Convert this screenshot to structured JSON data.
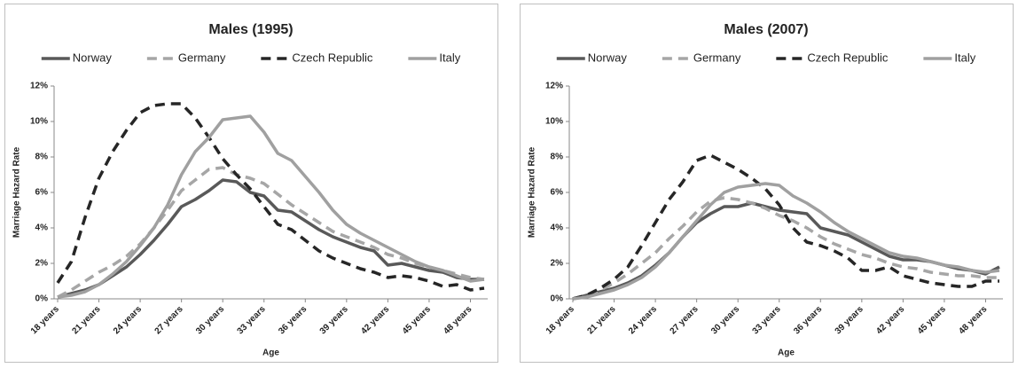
{
  "chart_data": [
    {
      "type": "line",
      "title": "Males (1995)",
      "x_label": "Age",
      "y_label": "Marriage Hazard Rate",
      "categories": [
        "18 years",
        null,
        null,
        "21 years",
        null,
        null,
        "24 years",
        null,
        null,
        "27 years",
        null,
        null,
        "30 years",
        null,
        null,
        "33 years",
        null,
        null,
        "36 years",
        null,
        null,
        "39 years",
        null,
        null,
        "42 years",
        null,
        null,
        "45 years",
        null,
        null,
        "48 years",
        null
      ],
      "ylim": [
        0,
        12
      ],
      "yticks": [
        {
          "value": 0,
          "label": "0%"
        },
        {
          "value": 2,
          "label": "2%"
        },
        {
          "value": 4,
          "label": "4%"
        },
        {
          "value": 6,
          "label": "6%"
        },
        {
          "value": 8,
          "label": "8%"
        },
        {
          "value": 10,
          "label": "10%"
        },
        {
          "value": 12,
          "label": "12%"
        }
      ],
      "grid": false,
      "legend": "top",
      "series": [
        {
          "name": "Norway",
          "color": "#595959",
          "dash": false,
          "values": [
            0.1,
            0.3,
            0.5,
            0.8,
            1.3,
            1.8,
            2.5,
            3.3,
            4.2,
            5.2,
            5.6,
            6.1,
            6.7,
            6.6,
            6.0,
            5.8,
            5.0,
            4.9,
            4.4,
            3.9,
            3.5,
            3.2,
            2.9,
            2.7,
            1.9,
            2.0,
            1.8,
            1.6,
            1.5,
            1.2,
            1.1,
            1.1
          ]
        },
        {
          "name": "Germany",
          "color": "#a6a6a6",
          "dash": true,
          "values": [
            0.1,
            0.5,
            1.0,
            1.5,
            1.9,
            2.4,
            3.1,
            4.0,
            5.0,
            6.1,
            6.7,
            7.3,
            7.4,
            7.0,
            6.8,
            6.5,
            5.9,
            5.3,
            4.8,
            4.3,
            3.8,
            3.5,
            3.2,
            2.9,
            2.5,
            2.3,
            2.0,
            1.8,
            1.6,
            1.4,
            1.2,
            1.1
          ]
        },
        {
          "name": "Czech Republic",
          "color": "#262626",
          "dash": true,
          "values": [
            0.9,
            2.1,
            4.6,
            6.8,
            8.3,
            9.5,
            10.5,
            10.9,
            11.0,
            11.0,
            10.2,
            9.1,
            7.9,
            7.0,
            6.2,
            5.2,
            4.2,
            3.9,
            3.3,
            2.7,
            2.3,
            2.0,
            1.7,
            1.5,
            1.2,
            1.3,
            1.2,
            1.0,
            0.7,
            0.8,
            0.5,
            0.6
          ]
        },
        {
          "name": "Italy",
          "color": "#a0a0a0",
          "dash": false,
          "values": [
            0.1,
            0.2,
            0.4,
            0.8,
            1.4,
            2.1,
            3.0,
            4.0,
            5.3,
            7.0,
            8.3,
            9.1,
            10.1,
            10.2,
            10.3,
            9.4,
            8.2,
            7.8,
            6.9,
            6.0,
            5.0,
            4.2,
            3.7,
            3.3,
            2.9,
            2.5,
            2.1,
            1.8,
            1.6,
            1.3,
            1.0,
            1.1
          ]
        }
      ]
    },
    {
      "type": "line",
      "title": "Males (2007)",
      "x_label": "Age",
      "y_label": "Marriage Hazard Rate",
      "categories": [
        "18 years",
        null,
        null,
        "21 years",
        null,
        null,
        "24 years",
        null,
        null,
        "27 years",
        null,
        null,
        "30 years",
        null,
        null,
        "33 years",
        null,
        null,
        "36 years",
        null,
        null,
        "39 years",
        null,
        null,
        "42 years",
        null,
        null,
        "45 years",
        null,
        null,
        "48 years",
        null
      ],
      "ylim": [
        0,
        12
      ],
      "yticks": [
        {
          "value": 0,
          "label": "0%"
        },
        {
          "value": 2,
          "label": "2%"
        },
        {
          "value": 4,
          "label": "4%"
        },
        {
          "value": 6,
          "label": "6%"
        },
        {
          "value": 8,
          "label": "8%"
        },
        {
          "value": 10,
          "label": "10%"
        },
        {
          "value": 12,
          "label": "12%"
        }
      ],
      "grid": false,
      "legend": "top",
      "series": [
        {
          "name": "Norway",
          "color": "#595959",
          "dash": false,
          "values": [
            0.0,
            0.2,
            0.4,
            0.6,
            0.9,
            1.3,
            1.9,
            2.6,
            3.5,
            4.3,
            4.8,
            5.2,
            5.2,
            5.4,
            5.2,
            5.0,
            4.9,
            4.8,
            4.0,
            3.8,
            3.6,
            3.2,
            2.8,
            2.4,
            2.2,
            2.2,
            2.1,
            1.9,
            1.7,
            1.6,
            1.4,
            1.8
          ]
        },
        {
          "name": "Germany",
          "color": "#a6a6a6",
          "dash": true,
          "values": [
            0.0,
            0.2,
            0.5,
            0.9,
            1.4,
            2.0,
            2.6,
            3.4,
            4.1,
            4.9,
            5.5,
            5.7,
            5.6,
            5.4,
            5.1,
            4.7,
            4.4,
            4.0,
            3.5,
            3.1,
            2.8,
            2.5,
            2.3,
            2.0,
            1.8,
            1.7,
            1.5,
            1.4,
            1.3,
            1.3,
            1.2,
            1.2
          ]
        },
        {
          "name": "Czech Republic",
          "color": "#262626",
          "dash": true,
          "values": [
            0.0,
            0.2,
            0.6,
            1.1,
            1.8,
            3.0,
            4.3,
            5.6,
            6.6,
            7.8,
            8.1,
            7.7,
            7.3,
            6.8,
            6.2,
            5.3,
            4.0,
            3.2,
            3.0,
            2.7,
            2.3,
            1.6,
            1.6,
            1.8,
            1.3,
            1.1,
            0.9,
            0.8,
            0.7,
            0.7,
            1.0,
            1.0
          ]
        },
        {
          "name": "Italy",
          "color": "#a0a0a0",
          "dash": false,
          "values": [
            0.0,
            0.1,
            0.3,
            0.5,
            0.8,
            1.2,
            1.8,
            2.6,
            3.5,
            4.4,
            5.3,
            6.0,
            6.3,
            6.4,
            6.5,
            6.4,
            5.8,
            5.4,
            4.9,
            4.3,
            3.8,
            3.4,
            3.0,
            2.6,
            2.4,
            2.3,
            2.1,
            1.9,
            1.8,
            1.6,
            1.5,
            1.6
          ]
        }
      ]
    }
  ]
}
